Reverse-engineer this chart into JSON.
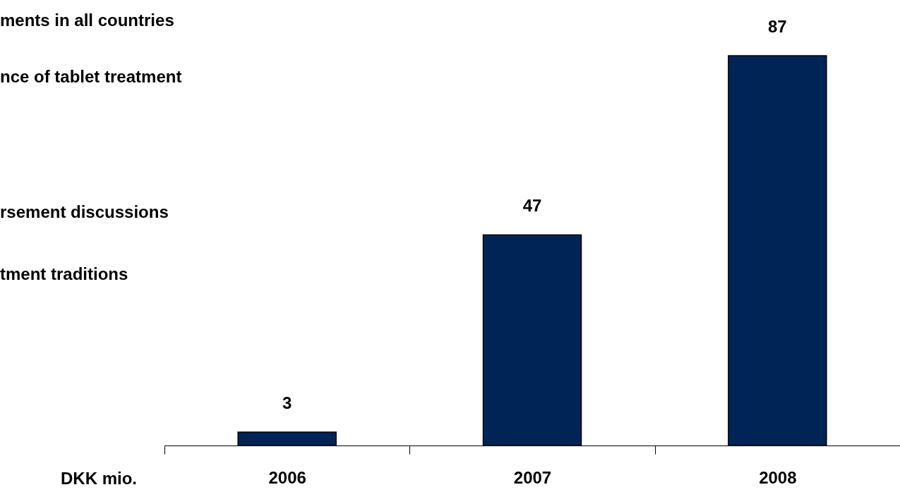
{
  "chart_data": {
    "type": "bar",
    "ylabel": "DKK mio.",
    "categories": [
      "2006",
      "2007",
      "2008"
    ],
    "values": [
      3,
      47,
      87
    ],
    "color": "#002456",
    "data_labels": true,
    "grid": false,
    "annotations": [
      "ments in all countries",
      "nce of tablet treatment",
      "rsement discussions",
      "tment traditions"
    ]
  }
}
